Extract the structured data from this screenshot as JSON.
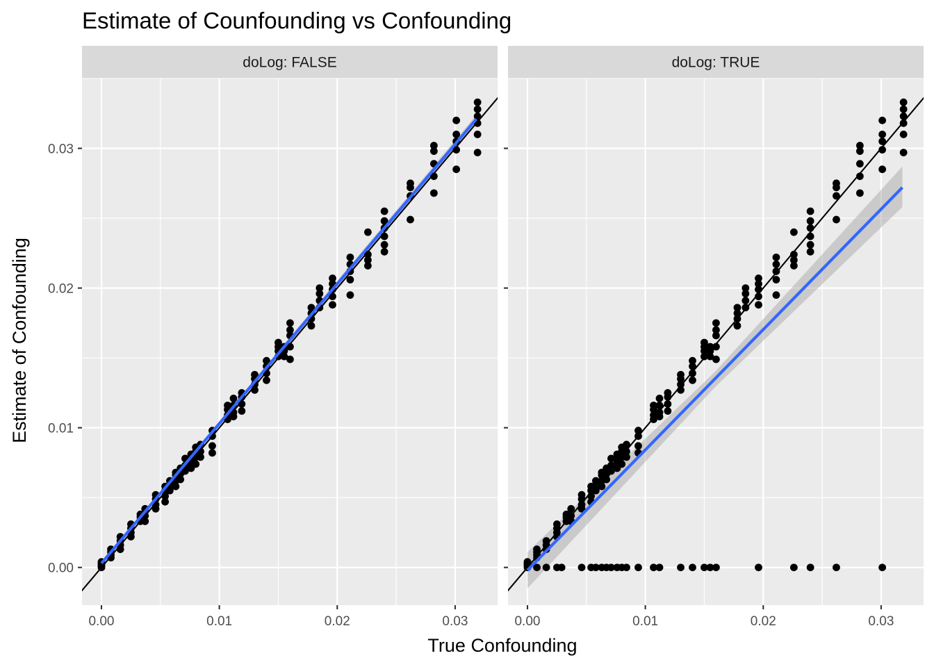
{
  "chart_data": {
    "type": "scatter",
    "title": "Estimate of Counfounding vs Confounding",
    "xlabel": "True Confounding",
    "ylabel": "Estimate of Confounding",
    "facet_variable": "doLog",
    "xlim": [
      -0.00165,
      0.0336
    ],
    "ylim": [
      -0.0027,
      0.035
    ],
    "x_ticks": [
      0.0,
      0.01,
      0.02,
      0.03
    ],
    "x_tick_labels": [
      "0.00",
      "0.01",
      "0.02",
      "0.03"
    ],
    "y_ticks": [
      0.0,
      0.01,
      0.02,
      0.03
    ],
    "y_tick_labels": [
      "0.00",
      "0.01",
      "0.02",
      "0.03"
    ],
    "grid": true,
    "reference_line": {
      "type": "identity",
      "slope": 1,
      "intercept": 0,
      "color": "#000000"
    },
    "colors": {
      "panel_bg": "#ebebeb",
      "strip_bg": "#d9d9d9",
      "grid_major": "#ffffff",
      "points": "#000000",
      "fit_line": "#3366ff",
      "confidence_band": "#999999"
    },
    "panels": [
      {
        "label": "doLog: FALSE",
        "fit": {
          "method": "lm",
          "x_start": 0.0,
          "x_end": 0.0318,
          "y_start": 0.0003,
          "y_end": 0.0321
        },
        "confidence_band": [
          {
            "x": 0.0,
            "lo": 0.0002,
            "hi": 0.0004
          },
          {
            "x": 0.0318,
            "lo": 0.0318,
            "hi": 0.0324
          }
        ],
        "point_clusters": [
          {
            "x": 0.0,
            "y": [
              0.0,
              0.0001,
              0.0002,
              0.0003,
              0.0004
            ]
          },
          {
            "x": 0.0008,
            "y": [
              0.0007,
              0.0009,
              0.0011,
              0.0013
            ]
          },
          {
            "x": 0.0016,
            "y": [
              0.0013,
              0.0016,
              0.0019,
              0.0022
            ]
          },
          {
            "x": 0.0025,
            "y": [
              0.0022,
              0.0025,
              0.0028,
              0.0031
            ]
          },
          {
            "x": 0.0033,
            "y": [
              0.0033,
              0.0036,
              0.0038
            ]
          },
          {
            "x": 0.0037,
            "y": [
              0.0033,
              0.0037,
              0.0042
            ]
          },
          {
            "x": 0.0046,
            "y": [
              0.0042,
              0.0045,
              0.0049,
              0.0052
            ]
          },
          {
            "x": 0.0054,
            "y": [
              0.0047,
              0.0051,
              0.0055,
              0.0058
            ]
          },
          {
            "x": 0.0058,
            "y": [
              0.0055,
              0.0059,
              0.0062
            ]
          },
          {
            "x": 0.0063,
            "y": [
              0.0058,
              0.0062,
              0.0066,
              0.0068
            ]
          },
          {
            "x": 0.0067,
            "y": [
              0.0063,
              0.0067,
              0.0071
            ]
          },
          {
            "x": 0.0071,
            "y": [
              0.0069,
              0.0073,
              0.0078
            ]
          },
          {
            "x": 0.0076,
            "y": [
              0.0071,
              0.0075,
              0.0078,
              0.0081
            ]
          },
          {
            "x": 0.008,
            "y": [
              0.0074,
              0.0079,
              0.0083,
              0.0086
            ]
          },
          {
            "x": 0.0084,
            "y": [
              0.0079,
              0.0083,
              0.0088
            ]
          },
          {
            "x": 0.0094,
            "y": [
              0.0082,
              0.0087,
              0.0094,
              0.0098
            ]
          },
          {
            "x": 0.0107,
            "y": [
              0.0106,
              0.0109,
              0.0113,
              0.0116
            ]
          },
          {
            "x": 0.0112,
            "y": [
              0.0108,
              0.0111,
              0.0116,
              0.0121
            ]
          },
          {
            "x": 0.0119,
            "y": [
              0.0112,
              0.0117,
              0.0122,
              0.0125
            ]
          },
          {
            "x": 0.013,
            "y": [
              0.0127,
              0.0131,
              0.0135,
              0.0138
            ]
          },
          {
            "x": 0.014,
            "y": [
              0.0134,
              0.0139,
              0.0144,
              0.0148
            ]
          },
          {
            "x": 0.015,
            "y": [
              0.0151,
              0.0155,
              0.0158,
              0.0161
            ]
          },
          {
            "x": 0.0155,
            "y": [
              0.0151,
              0.0155,
              0.0158
            ]
          },
          {
            "x": 0.016,
            "y": [
              0.0149,
              0.0158,
              0.0166,
              0.017,
              0.0175
            ]
          },
          {
            "x": 0.0178,
            "y": [
              0.0173,
              0.0178,
              0.0182,
              0.0186
            ]
          },
          {
            "x": 0.0185,
            "y": [
              0.0186,
              0.0191,
              0.0196,
              0.02
            ]
          },
          {
            "x": 0.0196,
            "y": [
              0.0188,
              0.0194,
              0.0199,
              0.0203,
              0.0207
            ]
          },
          {
            "x": 0.0211,
            "y": [
              0.0195,
              0.0206,
              0.0212,
              0.0217,
              0.0222
            ]
          },
          {
            "x": 0.0226,
            "y": [
              0.0216,
              0.022,
              0.0224,
              0.024
            ]
          },
          {
            "x": 0.024,
            "y": [
              0.0226,
              0.0231,
              0.0237,
              0.0243,
              0.0248,
              0.0255
            ]
          },
          {
            "x": 0.0262,
            "y": [
              0.0249,
              0.0266,
              0.0272,
              0.0275
            ]
          },
          {
            "x": 0.0282,
            "y": [
              0.0268,
              0.028,
              0.0289,
              0.0298,
              0.0302
            ]
          },
          {
            "x": 0.0301,
            "y": [
              0.0285,
              0.0299,
              0.0305,
              0.031,
              0.032
            ]
          },
          {
            "x": 0.0319,
            "y": [
              0.0297,
              0.031,
              0.0318,
              0.0323,
              0.0328,
              0.0333
            ]
          }
        ]
      },
      {
        "label": "doLog: TRUE",
        "fit": {
          "method": "lm",
          "x_start": 0.0,
          "x_end": 0.0318,
          "y_start": -0.0002,
          "y_end": 0.0272
        },
        "confidence_band": [
          {
            "x": 0.0,
            "lo": -0.0015,
            "hi": 0.0011
          },
          {
            "x": 0.0159,
            "lo": 0.0129,
            "hi": 0.014
          },
          {
            "x": 0.0318,
            "lo": 0.0258,
            "hi": 0.0287
          }
        ],
        "point_clusters": [
          {
            "x": 0.0,
            "y": [
              0.0,
              0.0001,
              0.0002,
              0.0003,
              0.0004
            ]
          },
          {
            "x": 0.0008,
            "y": [
              0.0,
              0.0007,
              0.0009,
              0.0011,
              0.0013
            ]
          },
          {
            "x": 0.0016,
            "y": [
              0.0,
              0.0013,
              0.0016,
              0.0019
            ]
          },
          {
            "x": 0.0025,
            "y": [
              0.0,
              0.0022,
              0.0025,
              0.0028,
              0.0031
            ]
          },
          {
            "x": 0.0029,
            "y": [
              0.0
            ]
          },
          {
            "x": 0.0033,
            "y": [
              0.0033,
              0.0036,
              0.0038
            ]
          },
          {
            "x": 0.0037,
            "y": [
              0.0033,
              0.0037,
              0.0042
            ]
          },
          {
            "x": 0.0046,
            "y": [
              0.0,
              0.0042,
              0.0045,
              0.0049,
              0.0052
            ]
          },
          {
            "x": 0.0054,
            "y": [
              0.0,
              0.0047,
              0.0051,
              0.0055,
              0.0058
            ]
          },
          {
            "x": 0.0058,
            "y": [
              0.0,
              0.0055,
              0.0059,
              0.0062
            ]
          },
          {
            "x": 0.0063,
            "y": [
              0.0,
              0.0058,
              0.0062,
              0.0066,
              0.0068
            ]
          },
          {
            "x": 0.0067,
            "y": [
              0.0,
              0.0063,
              0.0067,
              0.0071
            ]
          },
          {
            "x": 0.0071,
            "y": [
              0.0,
              0.0069,
              0.0073,
              0.0078
            ]
          },
          {
            "x": 0.0076,
            "y": [
              0.0,
              0.0071,
              0.0075,
              0.0078,
              0.0081
            ]
          },
          {
            "x": 0.008,
            "y": [
              0.0,
              0.0074,
              0.0079,
              0.0083,
              0.0086
            ]
          },
          {
            "x": 0.0084,
            "y": [
              0.0,
              0.0079,
              0.0083,
              0.0088
            ]
          },
          {
            "x": 0.0094,
            "y": [
              0.0,
              0.0082,
              0.0087,
              0.0094,
              0.0098
            ]
          },
          {
            "x": 0.0107,
            "y": [
              0.0,
              0.0106,
              0.0109,
              0.0113,
              0.0116
            ]
          },
          {
            "x": 0.0112,
            "y": [
              0.0,
              0.0108,
              0.0111,
              0.0116,
              0.0121
            ]
          },
          {
            "x": 0.0119,
            "y": [
              0.0112,
              0.0117,
              0.0122,
              0.0125
            ]
          },
          {
            "x": 0.013,
            "y": [
              0.0,
              0.0127,
              0.0131,
              0.0135,
              0.0138
            ]
          },
          {
            "x": 0.014,
            "y": [
              0.0,
              0.0134,
              0.0139,
              0.0144,
              0.0148
            ]
          },
          {
            "x": 0.015,
            "y": [
              0.0,
              0.0151,
              0.0155,
              0.0158,
              0.0161
            ]
          },
          {
            "x": 0.0155,
            "y": [
              0.0,
              0.0151,
              0.0155,
              0.0158
            ]
          },
          {
            "x": 0.016,
            "y": [
              0.0,
              0.0149,
              0.0158,
              0.0166,
              0.017,
              0.0175
            ]
          },
          {
            "x": 0.0178,
            "y": [
              0.0173,
              0.0178,
              0.0182,
              0.0186
            ]
          },
          {
            "x": 0.0185,
            "y": [
              0.0186,
              0.0191,
              0.0196,
              0.02
            ]
          },
          {
            "x": 0.0196,
            "y": [
              0.0,
              0.0188,
              0.0194,
              0.0199,
              0.0203,
              0.0207
            ]
          },
          {
            "x": 0.0211,
            "y": [
              0.0195,
              0.0206,
              0.0212,
              0.0217,
              0.0222
            ]
          },
          {
            "x": 0.0226,
            "y": [
              0.0,
              0.0216,
              0.022,
              0.0224,
              0.024
            ]
          },
          {
            "x": 0.024,
            "y": [
              0.0,
              0.0226,
              0.0231,
              0.0237,
              0.0243,
              0.0248,
              0.0255
            ]
          },
          {
            "x": 0.0262,
            "y": [
              0.0,
              0.0249,
              0.0266,
              0.0272,
              0.0275
            ]
          },
          {
            "x": 0.0282,
            "y": [
              0.0268,
              0.028,
              0.0289,
              0.0298,
              0.0302
            ]
          },
          {
            "x": 0.0301,
            "y": [
              0.0,
              0.0285,
              0.0299,
              0.0305,
              0.031,
              0.032
            ]
          },
          {
            "x": 0.0319,
            "y": [
              0.0297,
              0.031,
              0.0318,
              0.0323,
              0.0328,
              0.0333
            ]
          }
        ]
      }
    ]
  }
}
